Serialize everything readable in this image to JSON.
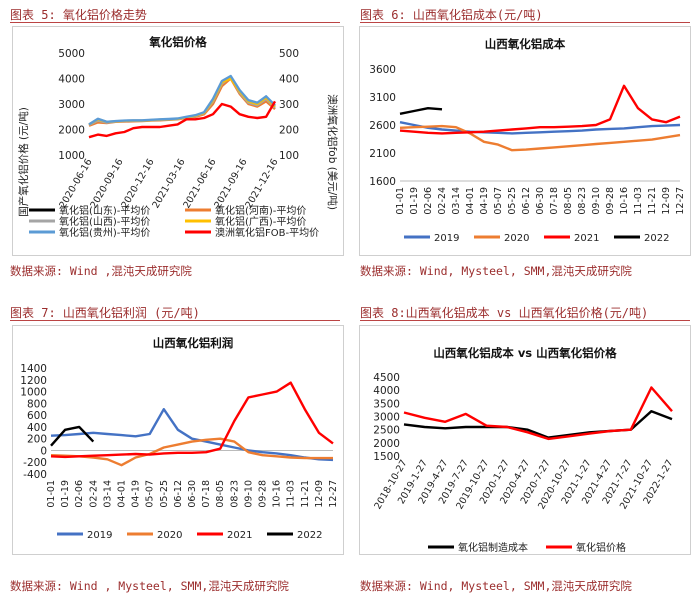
{
  "panels": {
    "p5": {
      "title": "图表 5: 氧化铝价格走势",
      "source": "数据来源: Wind ,混沌天成研究院"
    },
    "p6": {
      "title": "图表 6: 山西氧化铝成本(元/吨)",
      "source": "数据来源: Wind, Mysteel, SMM,混沌天成研究院"
    },
    "p7": {
      "title": "图表 7: 山西氧化铝利润 (元/吨)",
      "source": "数据来源: Wind , Mysteel, SMM,混沌天成研究院"
    },
    "p8": {
      "title": "图表 8:山西氧化铝成本 vs 山西氧化铝价格(元/吨)",
      "source": "数据来源: Wind, Mysteel, SMM,混沌天成研究院"
    }
  },
  "chart_data": [
    {
      "id": "c5",
      "type": "line",
      "title": "氧化铝价格",
      "ylabel": "国产氧化铝价格 (元/吨)",
      "y2label": "澳洲氧化铝fob (美元/吨)",
      "ylim": [
        1000,
        5000
      ],
      "y2lim": [
        100,
        500
      ],
      "yticks": [
        "5000",
        "4000",
        "3000",
        "2000",
        "1000"
      ],
      "y2ticks": [
        "500",
        "400",
        "300",
        "200",
        "100"
      ],
      "xticks": [
        "2020-06-16",
        "2020-09-16",
        "2020-12-16",
        "2021-03-16",
        "2021-06-16",
        "2021-09-16",
        "2021-12-16"
      ],
      "series": [
        {
          "name": "氧化铝(山东)-平均价",
          "color": "#000000",
          "axis": "left",
          "values": []
        },
        {
          "name": "氧化铝(河南)-平均价",
          "color": "#ed7d31",
          "axis": "left",
          "values": [
            2150,
            2280,
            2250,
            2300,
            2310,
            2320,
            2330,
            2350,
            2360,
            2380,
            2400,
            2450,
            2500,
            2600,
            3000,
            3700,
            4000,
            3400,
            3000,
            2900,
            3100,
            2800
          ]
        },
        {
          "name": "氧化铝(山西)-平均价",
          "color": "#a5a5a5",
          "axis": "left",
          "values": [
            2180,
            2350,
            2270,
            2310,
            2330,
            2340,
            2340,
            2360,
            2380,
            2390,
            2410,
            2460,
            2520,
            2640,
            3100,
            3800,
            4050,
            3450,
            3050,
            2950,
            3200,
            2850
          ]
        },
        {
          "name": "氧化铝(广西)-平均价",
          "color": "#ffc000",
          "axis": "left",
          "values": [
            2200,
            2400,
            2300,
            2320,
            2340,
            2350,
            2350,
            2370,
            2390,
            2400,
            2420,
            2480,
            2540,
            2650,
            3150,
            3850,
            4000,
            3500,
            3100,
            3000,
            3250,
            2900
          ]
        },
        {
          "name": "氧化铝(贵州)-平均价",
          "color": "#5b9bd5",
          "axis": "left",
          "values": [
            2200,
            2420,
            2300,
            2330,
            2350,
            2360,
            2360,
            2380,
            2400,
            2410,
            2430,
            2500,
            2560,
            2680,
            3200,
            3900,
            4100,
            3550,
            3150,
            3050,
            3300,
            2950
          ]
        },
        {
          "name": "澳洲氧化铝FOB-平均价",
          "color": "#ff0000",
          "axis": "right",
          "values": [
            170,
            180,
            175,
            185,
            190,
            205,
            210,
            210,
            210,
            215,
            220,
            240,
            240,
            245,
            260,
            300,
            290,
            260,
            250,
            245,
            250,
            310
          ]
        }
      ]
    },
    {
      "id": "c6",
      "type": "line",
      "title": "山西氧化铝成本",
      "ylim": [
        1600,
        3600
      ],
      "yticks": [
        "3600",
        "3100",
        "2600",
        "2100",
        "1600"
      ],
      "xticks": [
        "01-01",
        "01-19",
        "02-06",
        "02-24",
        "03-14",
        "04-01",
        "04-19",
        "05-07",
        "05-25",
        "06-12",
        "06-30",
        "07-18",
        "08-05",
        "08-23",
        "09-10",
        "09-28",
        "10-16",
        "11-03",
        "11-21",
        "12-09",
        "12-27"
      ],
      "series": [
        {
          "name": "2019",
          "color": "#4472c4",
          "values": [
            2650,
            2600,
            2550,
            2520,
            2500,
            2480,
            2470,
            2460,
            2450,
            2460,
            2470,
            2480,
            2490,
            2500,
            2520,
            2530,
            2540,
            2560,
            2580,
            2590,
            2600
          ]
        },
        {
          "name": "2020",
          "color": "#ed7d31",
          "values": [
            2550,
            2560,
            2570,
            2580,
            2560,
            2450,
            2300,
            2250,
            2150,
            2160,
            2180,
            2200,
            2220,
            2240,
            2260,
            2280,
            2300,
            2320,
            2340,
            2380,
            2420
          ]
        },
        {
          "name": "2021",
          "color": "#ff0000",
          "values": [
            2500,
            2480,
            2460,
            2450,
            2460,
            2470,
            2480,
            2500,
            2520,
            2540,
            2560,
            2560,
            2570,
            2580,
            2600,
            2700,
            3300,
            2900,
            2700,
            2650,
            2750
          ]
        },
        {
          "name": "2022",
          "color": "#000000",
          "values": [
            2800,
            2850,
            2900,
            2880,
            null,
            null,
            null,
            null,
            null,
            null,
            null,
            null,
            null,
            null,
            null,
            null,
            null,
            null,
            null,
            null,
            null
          ]
        }
      ]
    },
    {
      "id": "c7",
      "type": "line",
      "title": "山西氧化铝利润",
      "ylim": [
        -400,
        1400
      ],
      "yticks": [
        "1400",
        "1200",
        "1000",
        "800",
        "600",
        "400",
        "200",
        "0",
        "-200",
        "-400"
      ],
      "xticks": [
        "01-01",
        "01-19",
        "02-06",
        "02-24",
        "03-14",
        "04-01",
        "04-19",
        "05-07",
        "05-25",
        "06-12",
        "06-30",
        "07-18",
        "08-05",
        "08-23",
        "09-10",
        "09-28",
        "10-16",
        "11-03",
        "11-21",
        "12-09",
        "12-27"
      ],
      "series": [
        {
          "name": "2019",
          "color": "#4472c4",
          "values": [
            250,
            260,
            280,
            300,
            280,
            260,
            240,
            280,
            700,
            350,
            200,
            150,
            100,
            50,
            0,
            -30,
            -50,
            -80,
            -120,
            -150,
            -160
          ]
        },
        {
          "name": "2020",
          "color": "#ed7d31",
          "values": [
            -80,
            -90,
            -100,
            -120,
            -150,
            -250,
            -120,
            -60,
            50,
            100,
            150,
            180,
            200,
            150,
            -30,
            -80,
            -100,
            -120,
            -130,
            -130,
            -130
          ]
        },
        {
          "name": "2021",
          "color": "#ff0000",
          "values": [
            -100,
            -110,
            -100,
            -90,
            -80,
            -70,
            -60,
            -70,
            -50,
            -40,
            -40,
            -30,
            30,
            500,
            900,
            950,
            1000,
            1150,
            700,
            300,
            120
          ]
        },
        {
          "name": "2022",
          "color": "#000000",
          "values": [
            80,
            350,
            400,
            150,
            null,
            null,
            null,
            null,
            null,
            null,
            null,
            null,
            null,
            null,
            null,
            null,
            null,
            null,
            null,
            null,
            null
          ]
        }
      ]
    },
    {
      "id": "c8",
      "type": "line",
      "title": "山西氧化铝成本 vs 山西氧化铝价格",
      "ylim": [
        1500,
        4500
      ],
      "yticks": [
        "4500",
        "4000",
        "3500",
        "3000",
        "2500",
        "2000",
        "1500"
      ],
      "xticks": [
        "2018-10-27",
        "2019-1-27",
        "2019-4-27",
        "2019-7-27",
        "2019-10-27",
        "2020-1-27",
        "2020-4-27",
        "2020-7-27",
        "2020-10-27",
        "2021-1-27",
        "2021-4-27",
        "2021-7-27",
        "2021-10-27",
        "2022-1-27"
      ],
      "series": [
        {
          "name": "氧化铝制造成本",
          "color": "#000000",
          "values": [
            2700,
            2600,
            2550,
            2600,
            2600,
            2600,
            2500,
            2200,
            2300,
            2400,
            2450,
            2500,
            3200,
            2900
          ]
        },
        {
          "name": "氧化铝价格",
          "color": "#ff0000",
          "values": [
            3150,
            2950,
            2800,
            3100,
            2650,
            2600,
            2400,
            2150,
            2250,
            2350,
            2450,
            2500,
            4100,
            3200
          ]
        }
      ]
    }
  ]
}
